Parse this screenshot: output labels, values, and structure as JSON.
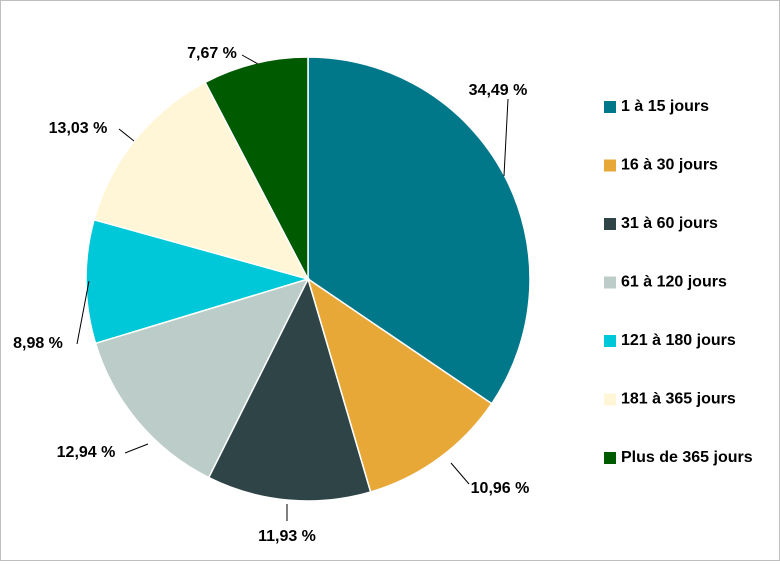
{
  "chart_data": {
    "type": "pie",
    "categories": [
      "1 à 15 jours",
      "16 à 30 jours",
      "31 à 60 jours",
      "61 à 120 jours",
      "121 à 180 jours",
      "181 à 365 jours",
      "Plus de 365 jours"
    ],
    "values": [
      34.49,
      10.96,
      11.93,
      12.94,
      8.98,
      13.03,
      7.67
    ],
    "data_labels": [
      "34,49 %",
      "10,96 %",
      "11,93 %",
      "12,94 %",
      "8,98 %",
      "13,03 %",
      "7,67 %"
    ],
    "colors": [
      "#00788A",
      "#E8A838",
      "#2F4447",
      "#BCCCC8",
      "#00C8D8",
      "#FFF6D8",
      "#005A00"
    ],
    "unit": "%",
    "start_angle": "12 o'clock",
    "direction": "clockwise",
    "legend_position": "right"
  }
}
